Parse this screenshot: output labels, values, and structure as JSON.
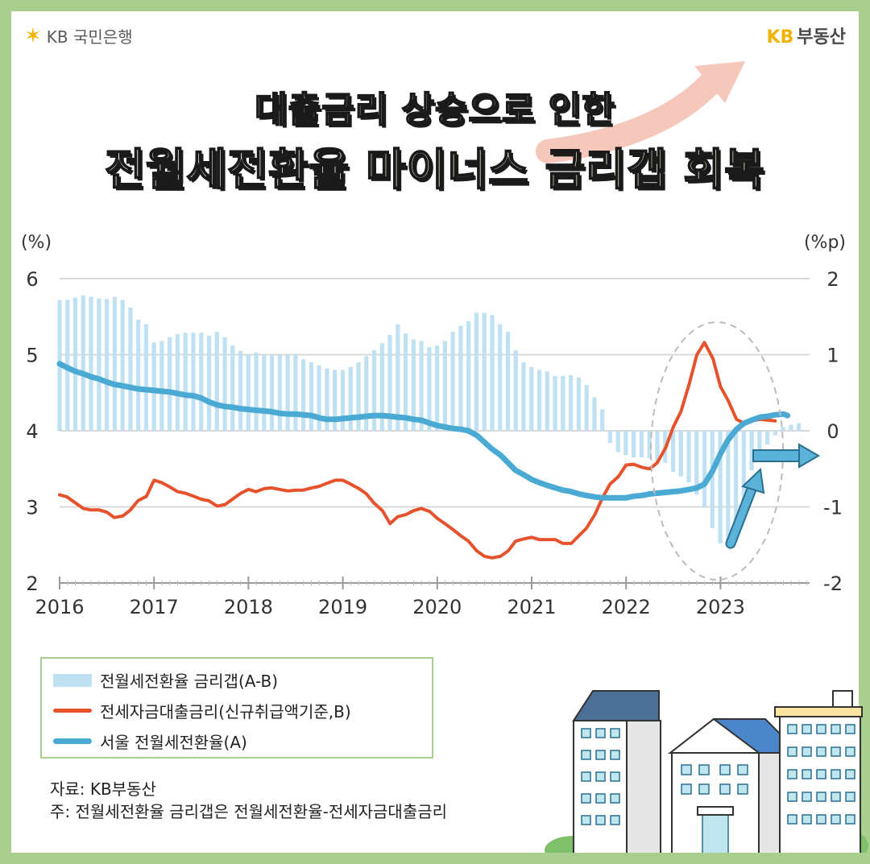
{
  "header": {
    "bank_logo_text": "KB 국민은행",
    "estate_logo_kb": "KB",
    "estate_logo_text": "부동산"
  },
  "title": {
    "line1_highlight": "대출금리 상승",
    "line1_rest": "으로 인한",
    "line2_dark": "전월세전환율",
    "line2_highlight": "마이너스 금리갭 회복"
  },
  "colors": {
    "bars": "#bfe1f1",
    "loan_rate_line": "#e6522c",
    "conversion_rate_line": "#4baad3",
    "frame": "#a9cf8e"
  },
  "chart_data": {
    "type": "bar+line",
    "left_unit": "(%)",
    "right_unit": "(%p)",
    "left_ylim": [
      2,
      6
    ],
    "left_ticks": [
      "2",
      "3",
      "4",
      "5",
      "6"
    ],
    "right_ylim": [
      -2,
      2
    ],
    "right_ticks": [
      "-2",
      "-1",
      "0",
      "1",
      "2"
    ],
    "x_labels": [
      "2016",
      "2017",
      "2018",
      "2019",
      "2020",
      "2021",
      "2022",
      "2023"
    ],
    "x_start": 2016.0,
    "x_end": 2023.75,
    "grid": true,
    "series": [
      {
        "name": "전월세전환율 금리갭(A-B)",
        "kind": "bar",
        "axis": "right",
        "x_start": 2016.0,
        "step": 0.0833,
        "values": [
          1.72,
          1.72,
          1.75,
          1.78,
          1.76,
          1.74,
          1.73,
          1.76,
          1.72,
          1.62,
          1.46,
          1.4,
          1.16,
          1.18,
          1.23,
          1.27,
          1.29,
          1.29,
          1.29,
          1.25,
          1.3,
          1.23,
          1.12,
          1.05,
          1.0,
          1.03,
          1.01,
          0.99,
          1.0,
          1.0,
          1.0,
          0.94,
          0.9,
          0.86,
          0.82,
          0.8,
          0.8,
          0.84,
          0.9,
          0.98,
          1.06,
          1.15,
          1.26,
          1.4,
          1.28,
          1.2,
          1.18,
          1.1,
          1.12,
          1.18,
          1.3,
          1.38,
          1.44,
          1.55,
          1.55,
          1.52,
          1.4,
          1.3,
          1.06,
          0.9,
          0.84,
          0.8,
          0.78,
          0.72,
          0.72,
          0.73,
          0.7,
          0.6,
          0.44,
          0.28,
          -0.16,
          -0.28,
          -0.32,
          -0.35,
          -0.35,
          -0.36,
          -0.4,
          -0.42,
          -0.54,
          -0.6,
          -0.68,
          -0.84,
          -1.0,
          -1.28,
          -1.48,
          -1.5,
          -1.4,
          -1.1,
          -0.52,
          -0.32,
          -0.18,
          -0.06,
          0.05,
          0.08,
          0.1
        ]
      },
      {
        "name": "전세자금대출금리(신규취급액기준,B)",
        "kind": "line",
        "axis": "left",
        "points": [
          [
            2016.0,
            3.16
          ],
          [
            2016.08,
            3.13
          ],
          [
            2016.17,
            3.05
          ],
          [
            2016.25,
            2.98
          ],
          [
            2016.33,
            2.96
          ],
          [
            2016.42,
            2.96
          ],
          [
            2016.5,
            2.93
          ],
          [
            2016.58,
            2.86
          ],
          [
            2016.67,
            2.88
          ],
          [
            2016.75,
            2.96
          ],
          [
            2016.83,
            3.08
          ],
          [
            2016.92,
            3.14
          ],
          [
            2017.0,
            3.35
          ],
          [
            2017.08,
            3.32
          ],
          [
            2017.17,
            3.26
          ],
          [
            2017.25,
            3.2
          ],
          [
            2017.33,
            3.18
          ],
          [
            2017.42,
            3.14
          ],
          [
            2017.5,
            3.1
          ],
          [
            2017.58,
            3.08
          ],
          [
            2017.67,
            3.01
          ],
          [
            2017.75,
            3.03
          ],
          [
            2017.83,
            3.1
          ],
          [
            2017.92,
            3.18
          ],
          [
            2018.0,
            3.23
          ],
          [
            2018.08,
            3.2
          ],
          [
            2018.17,
            3.24
          ],
          [
            2018.25,
            3.25
          ],
          [
            2018.33,
            3.23
          ],
          [
            2018.42,
            3.21
          ],
          [
            2018.5,
            3.22
          ],
          [
            2018.58,
            3.22
          ],
          [
            2018.67,
            3.25
          ],
          [
            2018.75,
            3.27
          ],
          [
            2018.83,
            3.31
          ],
          [
            2018.92,
            3.35
          ],
          [
            2019.0,
            3.35
          ],
          [
            2019.08,
            3.3
          ],
          [
            2019.17,
            3.24
          ],
          [
            2019.25,
            3.17
          ],
          [
            2019.33,
            3.05
          ],
          [
            2019.42,
            2.95
          ],
          [
            2019.5,
            2.78
          ],
          [
            2019.58,
            2.87
          ],
          [
            2019.67,
            2.9
          ],
          [
            2019.75,
            2.95
          ],
          [
            2019.83,
            2.98
          ],
          [
            2019.92,
            2.94
          ],
          [
            2020.0,
            2.85
          ],
          [
            2020.08,
            2.78
          ],
          [
            2020.17,
            2.7
          ],
          [
            2020.25,
            2.62
          ],
          [
            2020.33,
            2.55
          ],
          [
            2020.42,
            2.42
          ],
          [
            2020.5,
            2.35
          ],
          [
            2020.58,
            2.33
          ],
          [
            2020.67,
            2.35
          ],
          [
            2020.75,
            2.42
          ],
          [
            2020.83,
            2.55
          ],
          [
            2020.92,
            2.58
          ],
          [
            2021.0,
            2.6
          ],
          [
            2021.08,
            2.57
          ],
          [
            2021.17,
            2.57
          ],
          [
            2021.25,
            2.57
          ],
          [
            2021.33,
            2.52
          ],
          [
            2021.42,
            2.52
          ],
          [
            2021.5,
            2.62
          ],
          [
            2021.58,
            2.72
          ],
          [
            2021.67,
            2.9
          ],
          [
            2021.75,
            3.12
          ],
          [
            2021.83,
            3.3
          ],
          [
            2021.92,
            3.4
          ],
          [
            2022.0,
            3.55
          ],
          [
            2022.08,
            3.56
          ],
          [
            2022.17,
            3.52
          ],
          [
            2022.25,
            3.5
          ],
          [
            2022.33,
            3.58
          ],
          [
            2022.42,
            3.78
          ],
          [
            2022.5,
            4.05
          ],
          [
            2022.58,
            4.25
          ],
          [
            2022.67,
            4.62
          ],
          [
            2022.75,
            5.0
          ],
          [
            2022.83,
            5.16
          ],
          [
            2022.92,
            4.95
          ],
          [
            2023.0,
            4.58
          ],
          [
            2023.08,
            4.4
          ],
          [
            2023.17,
            4.15
          ],
          [
            2023.25,
            4.1
          ],
          [
            2023.33,
            4.13
          ],
          [
            2023.42,
            4.15
          ],
          [
            2023.5,
            4.14
          ],
          [
            2023.58,
            4.13
          ]
        ]
      },
      {
        "name": "서울 전월세전환율(A)",
        "kind": "line",
        "axis": "left",
        "points": [
          [
            2016.0,
            4.88
          ],
          [
            2016.08,
            4.83
          ],
          [
            2016.17,
            4.78
          ],
          [
            2016.25,
            4.75
          ],
          [
            2016.33,
            4.71
          ],
          [
            2016.42,
            4.68
          ],
          [
            2016.5,
            4.64
          ],
          [
            2016.58,
            4.61
          ],
          [
            2016.67,
            4.59
          ],
          [
            2016.75,
            4.57
          ],
          [
            2016.83,
            4.55
          ],
          [
            2016.92,
            4.54
          ],
          [
            2017.0,
            4.53
          ],
          [
            2017.08,
            4.52
          ],
          [
            2017.17,
            4.51
          ],
          [
            2017.25,
            4.49
          ],
          [
            2017.33,
            4.47
          ],
          [
            2017.42,
            4.46
          ],
          [
            2017.5,
            4.43
          ],
          [
            2017.58,
            4.38
          ],
          [
            2017.67,
            4.34
          ],
          [
            2017.75,
            4.32
          ],
          [
            2017.83,
            4.31
          ],
          [
            2017.92,
            4.29
          ],
          [
            2018.0,
            4.28
          ],
          [
            2018.08,
            4.27
          ],
          [
            2018.17,
            4.26
          ],
          [
            2018.25,
            4.25
          ],
          [
            2018.33,
            4.23
          ],
          [
            2018.42,
            4.22
          ],
          [
            2018.5,
            4.22
          ],
          [
            2018.58,
            4.21
          ],
          [
            2018.67,
            4.2
          ],
          [
            2018.75,
            4.17
          ],
          [
            2018.83,
            4.15
          ],
          [
            2018.92,
            4.15
          ],
          [
            2019.0,
            4.16
          ],
          [
            2019.08,
            4.17
          ],
          [
            2019.17,
            4.18
          ],
          [
            2019.25,
            4.19
          ],
          [
            2019.33,
            4.2
          ],
          [
            2019.42,
            4.2
          ],
          [
            2019.5,
            4.19
          ],
          [
            2019.58,
            4.18
          ],
          [
            2019.67,
            4.17
          ],
          [
            2019.75,
            4.15
          ],
          [
            2019.83,
            4.14
          ],
          [
            2019.92,
            4.1
          ],
          [
            2020.0,
            4.07
          ],
          [
            2020.08,
            4.05
          ],
          [
            2020.17,
            4.03
          ],
          [
            2020.25,
            4.02
          ],
          [
            2020.33,
            4.0
          ],
          [
            2020.42,
            3.94
          ],
          [
            2020.5,
            3.85
          ],
          [
            2020.58,
            3.76
          ],
          [
            2020.67,
            3.68
          ],
          [
            2020.75,
            3.58
          ],
          [
            2020.83,
            3.48
          ],
          [
            2020.92,
            3.42
          ],
          [
            2021.0,
            3.36
          ],
          [
            2021.08,
            3.32
          ],
          [
            2021.17,
            3.28
          ],
          [
            2021.25,
            3.25
          ],
          [
            2021.33,
            3.22
          ],
          [
            2021.42,
            3.2
          ],
          [
            2021.5,
            3.17
          ],
          [
            2021.58,
            3.15
          ],
          [
            2021.67,
            3.13
          ],
          [
            2021.75,
            3.12
          ],
          [
            2021.83,
            3.12
          ],
          [
            2021.92,
            3.12
          ],
          [
            2022.0,
            3.12
          ],
          [
            2022.08,
            3.14
          ],
          [
            2022.17,
            3.15
          ],
          [
            2022.25,
            3.17
          ],
          [
            2022.33,
            3.18
          ],
          [
            2022.42,
            3.19
          ],
          [
            2022.5,
            3.2
          ],
          [
            2022.58,
            3.21
          ],
          [
            2022.67,
            3.23
          ],
          [
            2022.75,
            3.25
          ],
          [
            2022.83,
            3.3
          ],
          [
            2022.92,
            3.48
          ],
          [
            2023.0,
            3.7
          ],
          [
            2023.08,
            3.88
          ],
          [
            2023.17,
            4.02
          ],
          [
            2023.25,
            4.1
          ],
          [
            2023.33,
            4.14
          ],
          [
            2023.42,
            4.18
          ],
          [
            2023.5,
            4.19
          ],
          [
            2023.58,
            4.21
          ],
          [
            2023.67,
            4.22
          ],
          [
            2023.71,
            4.2
          ]
        ]
      }
    ]
  },
  "legend": {
    "gap_label": "전월세전환율 금리갭(A-B)",
    "loan_label": "전세자금대출금리(신규취급액기준,B)",
    "conv_label": "서울 전월세전환율(A)"
  },
  "notes": {
    "source": "자료: KB부동산",
    "note": "주: 전월세전환율 금리갭은 전월세전환율-전세자금대출금리"
  }
}
